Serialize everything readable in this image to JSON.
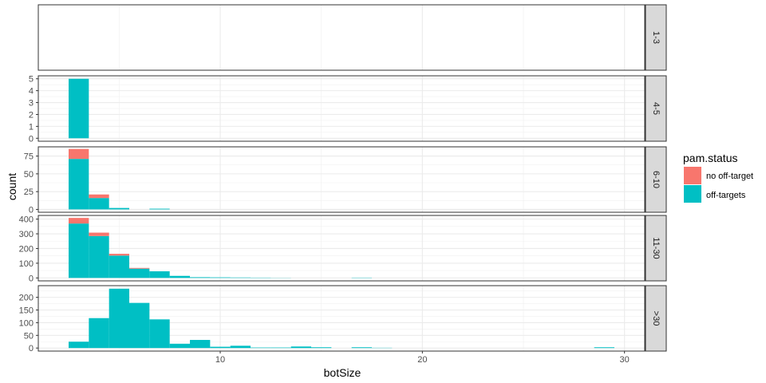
{
  "chart_data": {
    "type": "bar",
    "subtype": "faceted-stacked-histogram",
    "xlabel": "botSize",
    "ylabel": "count",
    "xlim": [
      1,
      31
    ],
    "x_ticks": [
      10,
      20,
      30
    ],
    "bin_width": 1,
    "legend": {
      "title": "pam.status",
      "position": "right",
      "entries": [
        {
          "label": "no off-target",
          "color": "#F8766D"
        },
        {
          "label": "off-targets",
          "color": "#00BFC4"
        }
      ]
    },
    "facet_orientation": "rows",
    "facets": [
      {
        "label": "1-3",
        "ylim": [
          0,
          1
        ],
        "y_ticks": [],
        "bins": []
      },
      {
        "label": "4-5",
        "ylim": [
          -0.25,
          5.25
        ],
        "y_ticks": [
          0,
          1,
          2,
          3,
          4,
          5
        ],
        "bins": [
          {
            "x": 3,
            "off_targets": 5,
            "no_off_target": 0
          }
        ]
      },
      {
        "label": "6-10",
        "ylim": [
          -4,
          88
        ],
        "y_ticks": [
          0,
          25,
          50,
          75
        ],
        "bins": [
          {
            "x": 3,
            "off_targets": 71,
            "no_off_target": 14
          },
          {
            "x": 4,
            "off_targets": 16,
            "no_off_target": 5
          },
          {
            "x": 5,
            "off_targets": 2,
            "no_off_target": 0
          },
          {
            "x": 7,
            "off_targets": 1,
            "no_off_target": 0
          }
        ]
      },
      {
        "label": "11-30",
        "ylim": [
          -20,
          425
        ],
        "y_ticks": [
          0,
          100,
          200,
          300,
          400
        ],
        "bins": [
          {
            "x": 3,
            "off_targets": 370,
            "no_off_target": 38
          },
          {
            "x": 4,
            "off_targets": 285,
            "no_off_target": 23
          },
          {
            "x": 5,
            "off_targets": 152,
            "no_off_target": 12
          },
          {
            "x": 6,
            "off_targets": 63,
            "no_off_target": 5
          },
          {
            "x": 7,
            "off_targets": 45,
            "no_off_target": 0
          },
          {
            "x": 8,
            "off_targets": 14,
            "no_off_target": 0
          },
          {
            "x": 9,
            "off_targets": 5,
            "no_off_target": 0
          },
          {
            "x": 10,
            "off_targets": 4,
            "no_off_target": 0
          },
          {
            "x": 11,
            "off_targets": 3,
            "no_off_target": 0
          },
          {
            "x": 12,
            "off_targets": 2,
            "no_off_target": 0
          },
          {
            "x": 13,
            "off_targets": 1,
            "no_off_target": 0
          },
          {
            "x": 17,
            "off_targets": 2,
            "no_off_target": 0
          }
        ]
      },
      {
        "label": ">30",
        "ylim": [
          -12,
          246
        ],
        "y_ticks": [
          0,
          50,
          100,
          150,
          200
        ],
        "bins": [
          {
            "x": 3,
            "off_targets": 25,
            "no_off_target": 0
          },
          {
            "x": 4,
            "off_targets": 118,
            "no_off_target": 0
          },
          {
            "x": 5,
            "off_targets": 234,
            "no_off_target": 0
          },
          {
            "x": 6,
            "off_targets": 178,
            "no_off_target": 0
          },
          {
            "x": 7,
            "off_targets": 113,
            "no_off_target": 0
          },
          {
            "x": 8,
            "off_targets": 17,
            "no_off_target": 0
          },
          {
            "x": 9,
            "off_targets": 32,
            "no_off_target": 0
          },
          {
            "x": 10,
            "off_targets": 5,
            "no_off_target": 0
          },
          {
            "x": 11,
            "off_targets": 9,
            "no_off_target": 0
          },
          {
            "x": 12,
            "off_targets": 2,
            "no_off_target": 0
          },
          {
            "x": 13,
            "off_targets": 2,
            "no_off_target": 0
          },
          {
            "x": 14,
            "off_targets": 6,
            "no_off_target": 0
          },
          {
            "x": 15,
            "off_targets": 3,
            "no_off_target": 0
          },
          {
            "x": 17,
            "off_targets": 3,
            "no_off_target": 0
          },
          {
            "x": 18,
            "off_targets": 1,
            "no_off_target": 0
          },
          {
            "x": 29,
            "off_targets": 3,
            "no_off_target": 0
          }
        ]
      }
    ]
  }
}
